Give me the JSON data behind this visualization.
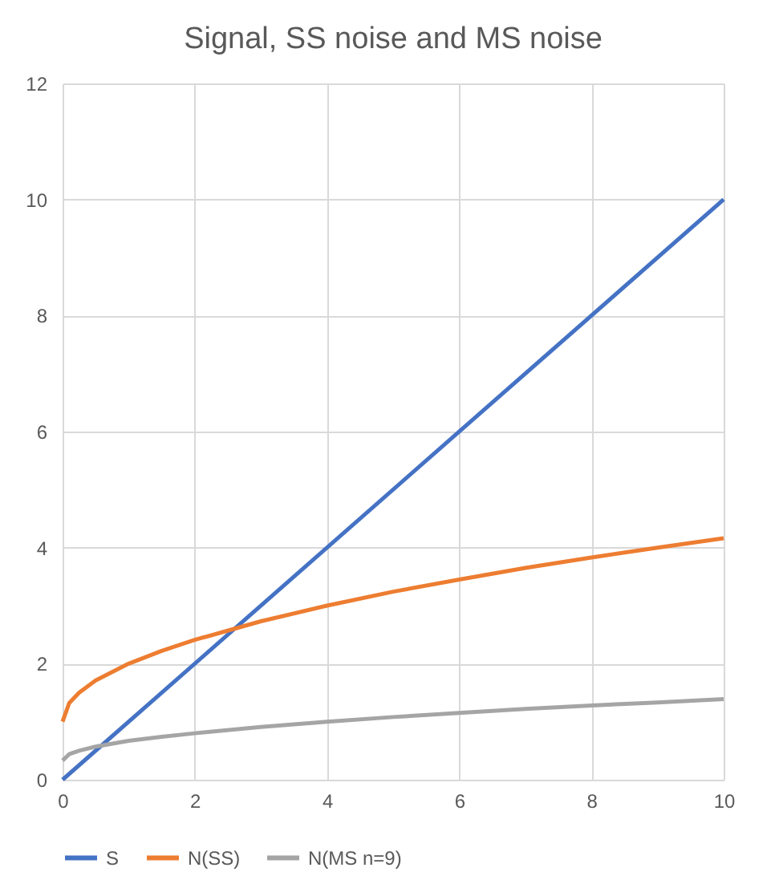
{
  "chart_data": {
    "type": "line",
    "title": "Signal, SS noise and MS noise",
    "series": [
      {
        "name": "S",
        "color": "#4472c4",
        "x": [
          0,
          10
        ],
        "values": [
          0,
          10
        ]
      },
      {
        "name": "N(SS)",
        "color": "#ed7d31",
        "x": [
          0,
          0.1,
          0.25,
          0.5,
          1,
          1.5,
          2,
          3,
          4,
          5,
          6,
          7,
          8,
          9,
          10
        ],
        "values": [
          1.0,
          1.32,
          1.5,
          1.71,
          2.0,
          2.22,
          2.41,
          2.73,
          3.0,
          3.24,
          3.45,
          3.65,
          3.83,
          4.0,
          4.16
        ]
      },
      {
        "name": "N(MS n=9)",
        "color": "#a5a5a5",
        "x": [
          0,
          0.1,
          0.25,
          0.5,
          1,
          1.5,
          2,
          3,
          4,
          5,
          6,
          7,
          8,
          9,
          10
        ],
        "values": [
          0.33,
          0.44,
          0.5,
          0.57,
          0.67,
          0.74,
          0.8,
          0.91,
          1.0,
          1.08,
          1.15,
          1.22,
          1.28,
          1.33,
          1.39
        ]
      }
    ],
    "xlim": [
      0,
      10
    ],
    "xticks": [
      0,
      2,
      4,
      6,
      8,
      10
    ],
    "ylim": [
      0,
      12
    ],
    "yticks": [
      0,
      2,
      4,
      6,
      8,
      10,
      12
    ],
    "grid": true,
    "legend": "bottom",
    "marker": "none",
    "line_style": "solid"
  }
}
